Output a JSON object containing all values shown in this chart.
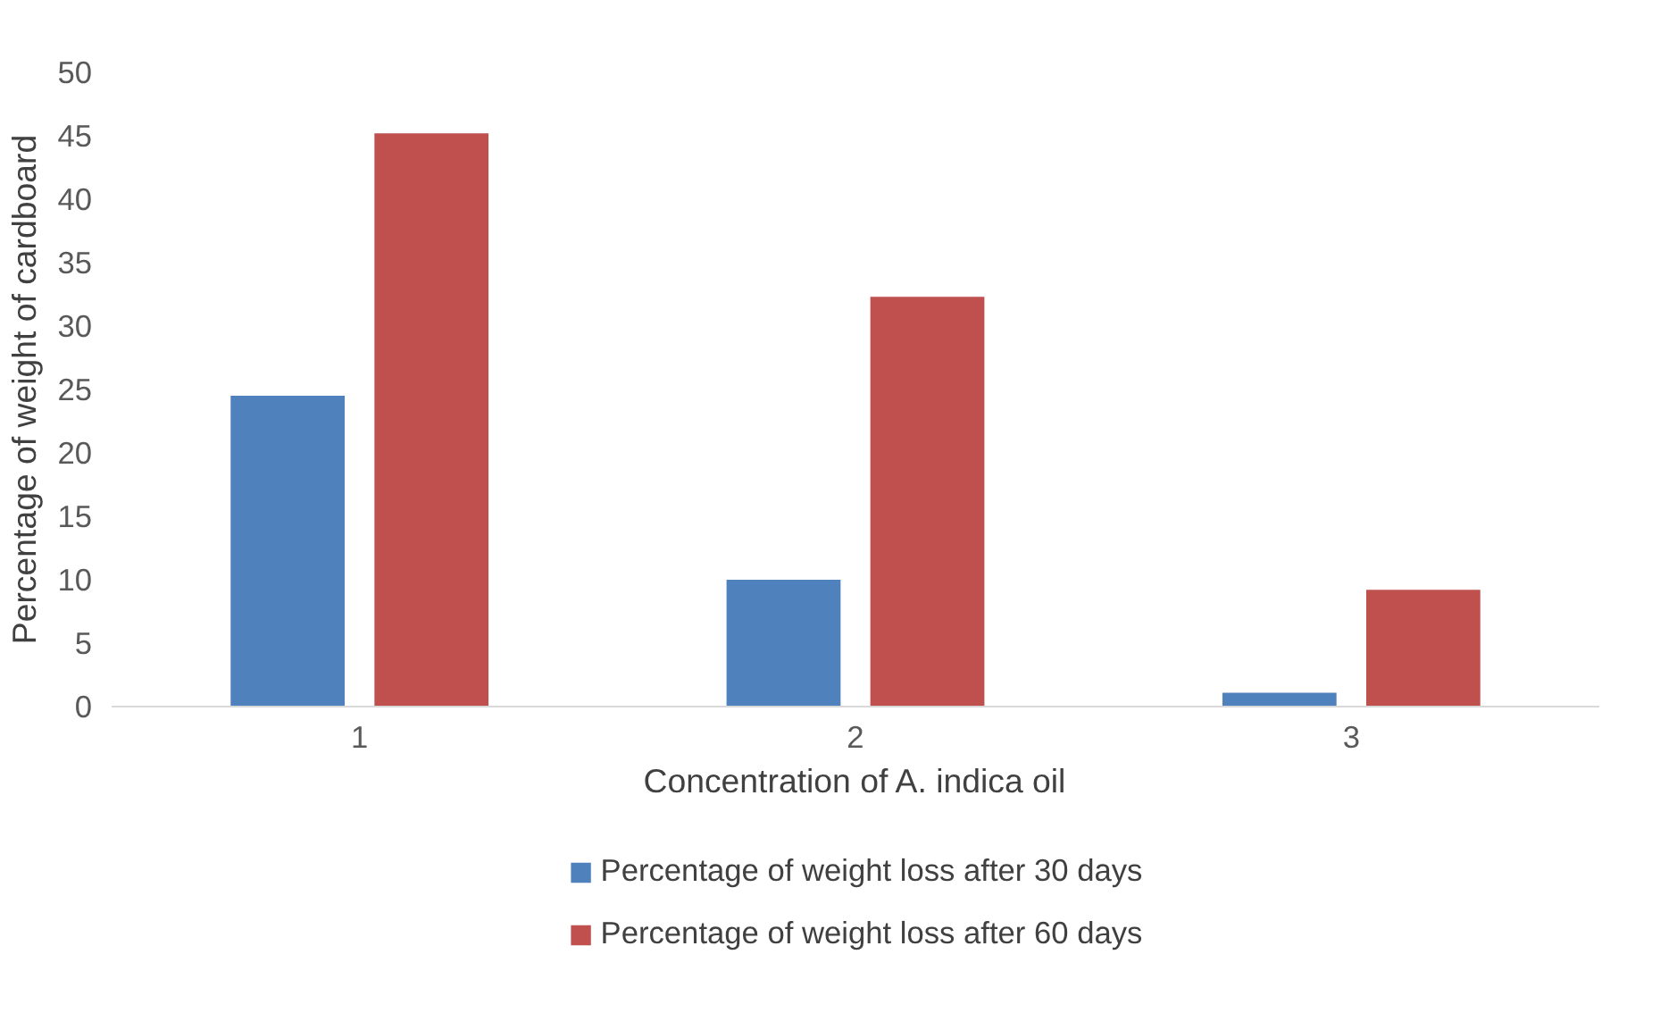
{
  "chart_data": {
    "type": "bar",
    "xlabel": "Concentration of A. indica oil",
    "ylabel": "Percentage of weight of cardboard",
    "categories": [
      "1",
      "2",
      "3"
    ],
    "series": [
      {
        "name": "Percentage of weight loss after 30 days",
        "color": "#4f81bd",
        "values": [
          24.5,
          10.0,
          1.1
        ]
      },
      {
        "name": "Percentage of weight loss after 60 days",
        "color": "#c0504d",
        "values": [
          45.2,
          32.3,
          9.2
        ]
      }
    ],
    "ylim": [
      0,
      50
    ],
    "yticks": [
      0,
      5,
      10,
      15,
      20,
      25,
      30,
      35,
      40,
      45,
      50
    ],
    "grid": false,
    "legend": "bottom"
  }
}
